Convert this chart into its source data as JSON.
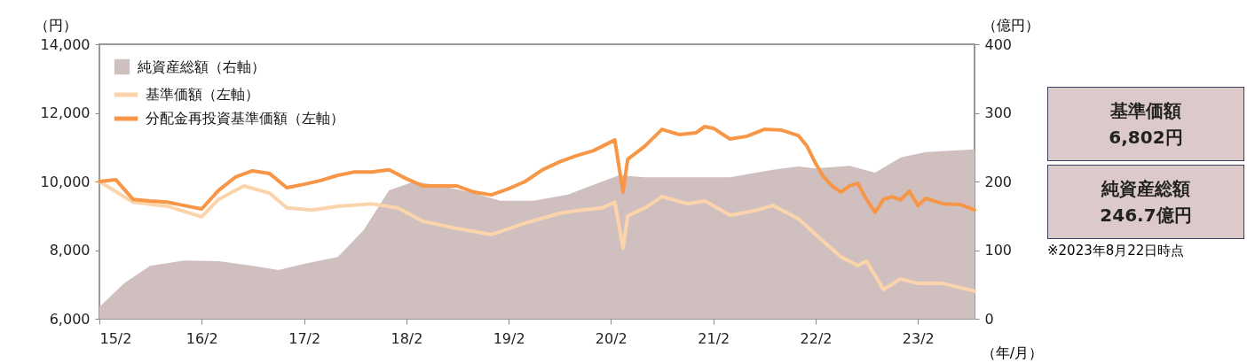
{
  "chart_data": {
    "type": "line",
    "xlabel": "（年/月）",
    "ylabel": "（円）",
    "y2label": "（億円）",
    "xlim": [
      "2015-02",
      "2023-08-22"
    ],
    "xticks": [
      {
        "value": "2015-02",
        "label": "15/2"
      },
      {
        "value": "2016-02",
        "label": "16/2"
      },
      {
        "value": "2017-02",
        "label": "17/2"
      },
      {
        "value": "2018-02",
        "label": "18/2"
      },
      {
        "value": "2019-02",
        "label": "19/2"
      },
      {
        "value": "2020-02",
        "label": "20/2"
      },
      {
        "value": "2021-02",
        "label": "21/2"
      },
      {
        "value": "2022-02",
        "label": "22/2"
      },
      {
        "value": "2023-02",
        "label": "23/2"
      }
    ],
    "ylim": [
      6000,
      14000
    ],
    "yticks": [
      {
        "value": 6000,
        "label": "6,000"
      },
      {
        "value": 8000,
        "label": "8,000"
      },
      {
        "value": 10000,
        "label": "10,000"
      },
      {
        "value": 12000,
        "label": "12,000"
      },
      {
        "value": 14000,
        "label": "14,000"
      }
    ],
    "y2lim": [
      0,
      400
    ],
    "y2ticks": [
      0,
      100,
      200,
      300,
      400
    ],
    "grid": false,
    "legend": "top left",
    "series": [
      {
        "name": "純資産総額（右軸）",
        "type": "area",
        "axis": "y2",
        "color": "#cfbfbf",
        "x": [
          "2015-02",
          "2015-05",
          "2015-08",
          "2015-12",
          "2016-04",
          "2016-08",
          "2016-11",
          "2017-02",
          "2017-06",
          "2017-09",
          "2017-12",
          "2018-03",
          "2018-06",
          "2018-10",
          "2019-01",
          "2019-05",
          "2019-09",
          "2020-01",
          "2020-03",
          "2020-06",
          "2020-12",
          "2021-04",
          "2021-09",
          "2021-12",
          "2022-02",
          "2022-06",
          "2022-09",
          "2022-12",
          "2023-03",
          "2023-08-22"
        ],
        "values": [
          17,
          52,
          77,
          85,
          84,
          77,
          71,
          80,
          90,
          129,
          187,
          200,
          194,
          183,
          172,
          172,
          181,
          200,
          209,
          206,
          206,
          206,
          217,
          222,
          219,
          223,
          213,
          235,
          243,
          246.7
        ]
      },
      {
        "name": "基準価額（左軸）",
        "color": "#fbd4ac",
        "x": [
          "2015-02",
          "2015-06",
          "2015-10",
          "2016-02",
          "2016-04",
          "2016-07",
          "2016-10",
          "2016-12",
          "2017-03",
          "2017-06",
          "2017-10",
          "2018-01",
          "2018-04",
          "2018-08",
          "2018-12",
          "2019-04",
          "2019-08",
          "2019-10",
          "2020-01",
          "2020-02-15",
          "2020-03-15",
          "2020-04",
          "2020-06",
          "2020-08",
          "2020-11",
          "2021-01",
          "2021-04",
          "2021-07",
          "2021-09",
          "2021-12",
          "2022-02",
          "2022-05",
          "2022-07",
          "2022-08",
          "2022-10",
          "2022-12",
          "2023-02",
          "2023-05",
          "2023-08-22"
        ],
        "values": [
          10000,
          9400,
          9280,
          8970,
          9480,
          9870,
          9660,
          9230,
          9170,
          9280,
          9350,
          9230,
          8840,
          8630,
          8450,
          8790,
          9070,
          9150,
          9230,
          9400,
          8060,
          9000,
          9230,
          9560,
          9350,
          9430,
          9020,
          9150,
          9300,
          8920,
          8450,
          7810,
          7550,
          7680,
          6850,
          7160,
          7030,
          7030,
          6802
        ]
      },
      {
        "name": "分配金再投資基準価額（左軸）",
        "color": "#f79646",
        "x": [
          "2015-02",
          "2015-04",
          "2015-06",
          "2015-08",
          "2015-10",
          "2015-12",
          "2016-02",
          "2016-04",
          "2016-06",
          "2016-08",
          "2016-10",
          "2016-12",
          "2017-02",
          "2017-04",
          "2017-06",
          "2017-08",
          "2017-10",
          "2017-12",
          "2018-02",
          "2018-04",
          "2018-06",
          "2018-08",
          "2018-10",
          "2018-12",
          "2019-02",
          "2019-04",
          "2019-06",
          "2019-08",
          "2019-10",
          "2019-12",
          "2020-02-15",
          "2020-03-15",
          "2020-04",
          "2020-06",
          "2020-08",
          "2020-10",
          "2020-12",
          "2021-01",
          "2021-02",
          "2021-04",
          "2021-06",
          "2021-08",
          "2021-10",
          "2021-12",
          "2022-01",
          "2022-02",
          "2022-03",
          "2022-04",
          "2022-05",
          "2022-06",
          "2022-07",
          "2022-08",
          "2022-09",
          "2022-10",
          "2022-11",
          "2022-12",
          "2023-01",
          "2023-02",
          "2023-03",
          "2023-05",
          "2023-07",
          "2023-08-22"
        ],
        "values": [
          10000,
          10050,
          9480,
          9430,
          9400,
          9300,
          9200,
          9740,
          10130,
          10310,
          10230,
          9820,
          9920,
          10030,
          10180,
          10280,
          10280,
          10340,
          10080,
          9870,
          9870,
          9870,
          9690,
          9610,
          9790,
          10000,
          10340,
          10570,
          10750,
          10900,
          11210,
          9690,
          10650,
          11030,
          11520,
          11370,
          11420,
          11600,
          11550,
          11240,
          11320,
          11520,
          11500,
          11340,
          11030,
          10520,
          10130,
          9870,
          9690,
          9870,
          9950,
          9480,
          9100,
          9480,
          9560,
          9460,
          9720,
          9300,
          9510,
          9350,
          9330,
          9170
        ]
      }
    ],
    "annotations": [
      "基準価額",
      "6,802円",
      "純資産総額",
      "246.7億円",
      "※2023年8月22日時点"
    ]
  }
}
